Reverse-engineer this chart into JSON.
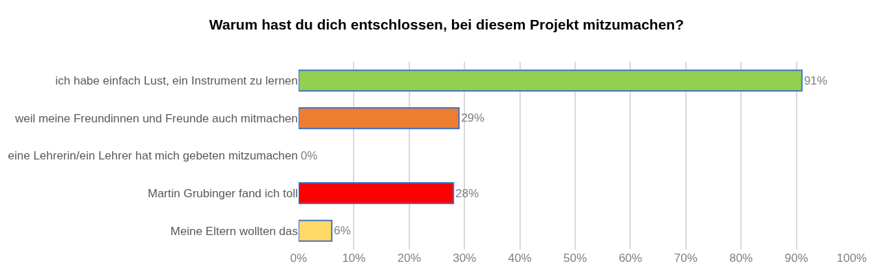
{
  "chart_data": {
    "type": "bar",
    "orientation": "horizontal",
    "title": "Warum hast du dich entschlossen, bei diesem Projekt mitzumachen?",
    "categories": [
      "ich habe einfach Lust, ein Instrument zu lernen",
      "weil meine Freundinnen und Freunde auch mitmachen",
      "eine Lehrerin/ein Lehrer hat mich gebeten mitzumachen",
      "Martin Grubinger fand ich toll",
      "Meine Eltern wollten das"
    ],
    "values": [
      91,
      29,
      0,
      28,
      6
    ],
    "value_labels": [
      "91%",
      "29%",
      "0%",
      "28%",
      "6%"
    ],
    "colors": [
      "#92d050",
      "#ed7d31",
      "#d9d9d9",
      "#ff0000",
      "#ffd966"
    ],
    "xlim": [
      0,
      100
    ],
    "xticks": [
      {
        "value": 0,
        "label": "0%"
      },
      {
        "value": 10,
        "label": "10%"
      },
      {
        "value": 20,
        "label": "20%"
      },
      {
        "value": 30,
        "label": "30%"
      },
      {
        "value": 40,
        "label": "40%"
      },
      {
        "value": 50,
        "label": "50%"
      },
      {
        "value": 60,
        "label": "60%"
      },
      {
        "value": 70,
        "label": "70%"
      },
      {
        "value": 80,
        "label": "80%"
      },
      {
        "value": 90,
        "label": "90%"
      },
      {
        "value": 100,
        "label": "100%"
      }
    ],
    "grid": "x",
    "legend": false
  }
}
